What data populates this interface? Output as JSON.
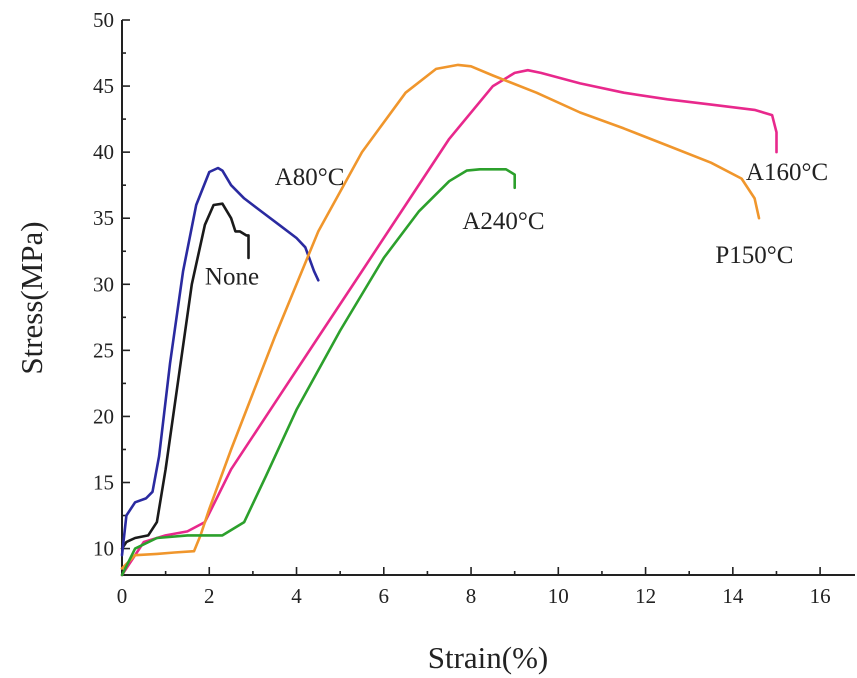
{
  "chart_data": {
    "type": "line",
    "xlabel": "Strain(%)",
    "ylabel": "Stress(MPa)",
    "xlim": [
      0,
      16.8
    ],
    "ylim": [
      8,
      50
    ],
    "xticks": [
      0,
      2,
      4,
      6,
      8,
      10,
      12,
      14,
      16
    ],
    "yticks": [
      10,
      15,
      20,
      25,
      30,
      35,
      40,
      45,
      50
    ],
    "grid": false,
    "legend": "none",
    "series": [
      {
        "name": "None",
        "color": "#1a1a1a",
        "label_at": [
          1.9,
          30.0
        ],
        "x": [
          0,
          0.1,
          0.3,
          0.6,
          0.8,
          1.0,
          1.3,
          1.6,
          1.9,
          2.1,
          2.3,
          2.5,
          2.6,
          2.7,
          2.85,
          2.9,
          2.9
        ],
        "y": [
          10.0,
          10.5,
          10.8,
          11.0,
          12.0,
          16.0,
          23.0,
          30.0,
          34.5,
          36.0,
          36.1,
          35.0,
          34.0,
          34.0,
          33.7,
          33.7,
          32.0
        ]
      },
      {
        "name": "A80°C",
        "color": "#2a2aa0",
        "label_at": [
          3.5,
          37.5
        ],
        "x": [
          0,
          0.1,
          0.3,
          0.55,
          0.7,
          0.85,
          1.1,
          1.4,
          1.7,
          2.0,
          2.2,
          2.3,
          2.5,
          2.8,
          3.2,
          3.6,
          4.0,
          4.2,
          4.4,
          4.5
        ],
        "y": [
          9.5,
          12.5,
          13.5,
          13.8,
          14.3,
          17.0,
          24.0,
          31.0,
          36.0,
          38.5,
          38.8,
          38.6,
          37.5,
          36.5,
          35.5,
          34.5,
          33.5,
          32.8,
          31.0,
          30.3
        ]
      },
      {
        "name": "A160°C",
        "color": "#e8288c",
        "label_at": [
          14.3,
          37.9
        ],
        "x": [
          0,
          0.5,
          1.0,
          1.5,
          1.9,
          2.5,
          3.5,
          4.5,
          5.5,
          6.5,
          7.5,
          8.5,
          9.0,
          9.3,
          9.6,
          10.5,
          11.5,
          12.5,
          13.5,
          14.5,
          14.9,
          15.0,
          15.0
        ],
        "y": [
          8.0,
          10.5,
          11.0,
          11.3,
          12.0,
          16.0,
          21.0,
          26.0,
          31.0,
          36.0,
          41.0,
          45.0,
          46.0,
          46.2,
          46.0,
          45.2,
          44.5,
          44.0,
          43.6,
          43.2,
          42.8,
          41.5,
          40.0
        ]
      },
      {
        "name": "P150°C",
        "color": "#f0962c",
        "label_at": [
          13.6,
          31.6
        ],
        "x": [
          0,
          0.3,
          0.8,
          1.2,
          1.65,
          1.8,
          2.0,
          2.5,
          3.5,
          4.5,
          5.5,
          6.5,
          7.2,
          7.7,
          8.0,
          8.5,
          9.5,
          10.5,
          11.5,
          12.5,
          13.5,
          14.2,
          14.5,
          14.6
        ],
        "y": [
          8.5,
          9.5,
          9.6,
          9.7,
          9.8,
          11.0,
          13.0,
          17.5,
          26.0,
          34.0,
          40.0,
          44.5,
          46.3,
          46.6,
          46.5,
          45.8,
          44.5,
          43.0,
          41.8,
          40.5,
          39.2,
          38.0,
          36.5,
          35.0
        ]
      },
      {
        "name": "A240°C",
        "color": "#2ca02c",
        "label_at": [
          7.8,
          34.2
        ],
        "x": [
          0,
          0.3,
          0.8,
          1.5,
          2.3,
          2.8,
          3.3,
          4.0,
          5.0,
          6.0,
          6.8,
          7.5,
          7.9,
          8.2,
          8.8,
          9.0,
          9.0
        ],
        "y": [
          8.0,
          10.0,
          10.8,
          11.0,
          11.0,
          12.0,
          15.5,
          20.5,
          26.5,
          32.0,
          35.5,
          37.8,
          38.6,
          38.7,
          38.7,
          38.3,
          37.3
        ]
      }
    ]
  }
}
